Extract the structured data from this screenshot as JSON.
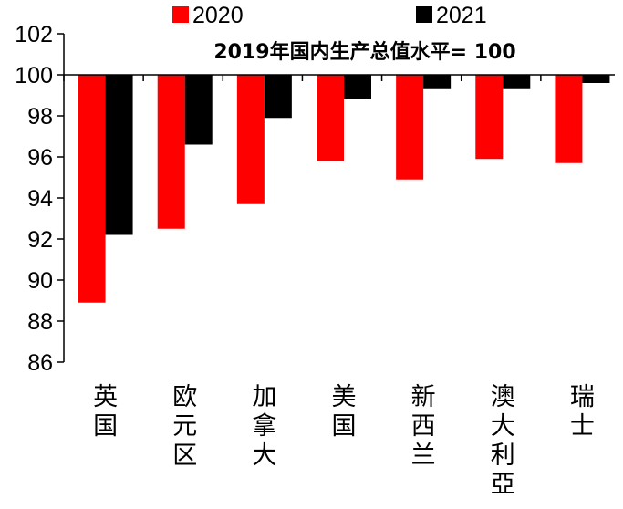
{
  "chart_data": {
    "type": "bar",
    "title": "2019年国内生产总值水平= 100",
    "categories": [
      "英国",
      "欧元区",
      "加拿大",
      "美国",
      "新西兰",
      "澳大利亞",
      "瑞士"
    ],
    "series": [
      {
        "name": "2020",
        "color": "#ff0000",
        "values": [
          88.9,
          92.5,
          93.7,
          95.8,
          94.9,
          95.9,
          95.7
        ]
      },
      {
        "name": "2021",
        "color": "#000000",
        "values": [
          92.2,
          96.6,
          97.9,
          98.8,
          99.3,
          99.3,
          99.6
        ]
      }
    ],
    "ylim": [
      86,
      102
    ],
    "yticks": [
      86,
      88,
      90,
      92,
      94,
      96,
      98,
      100,
      102
    ],
    "baseline": 100,
    "grid": false,
    "legend_position": "top"
  }
}
